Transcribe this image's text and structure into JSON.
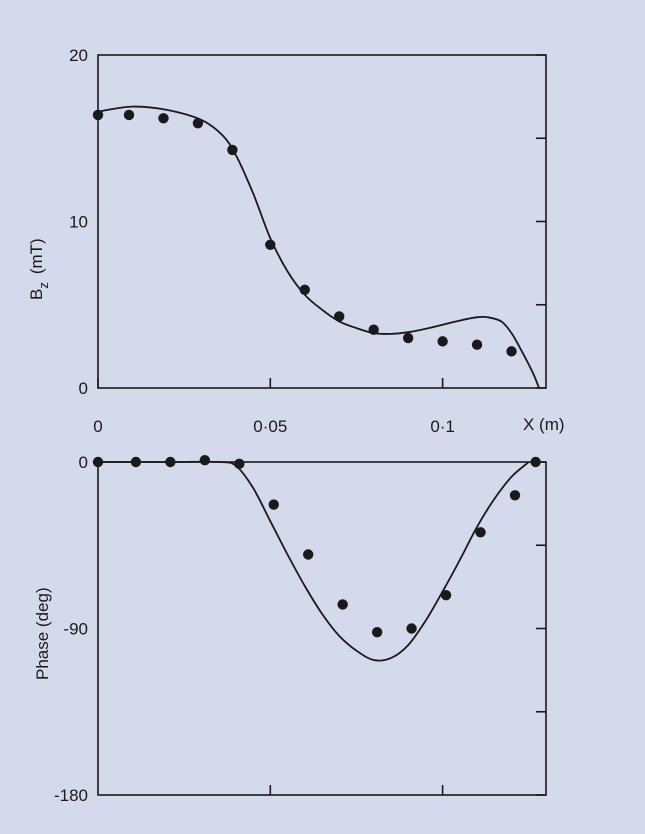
{
  "colors": {
    "background": "#d5d9ec",
    "ink": "#1a1a1a"
  },
  "chart_data": [
    {
      "type": "line",
      "title": "",
      "ylabel": "B",
      "ylabel_sub": "z",
      "ylabel_unit": "(mT)",
      "xlabel": "X (m)",
      "xlim": [
        0,
        0.13
      ],
      "ylim": [
        0,
        20
      ],
      "yticks": [
        0,
        5,
        10,
        15,
        20
      ],
      "ytick_labels": [
        "0",
        "",
        "10",
        "",
        "20"
      ],
      "xticks": [
        0,
        0.05,
        0.1
      ],
      "xtick_labels": [
        "0",
        "0·05",
        "0·1"
      ],
      "grid": false,
      "series": [
        {
          "style": "line",
          "x": [
            0,
            0.01,
            0.02,
            0.03,
            0.036,
            0.04,
            0.045,
            0.05,
            0.055,
            0.06,
            0.065,
            0.07,
            0.075,
            0.08,
            0.085,
            0.09,
            0.095,
            0.1,
            0.105,
            0.11,
            0.113,
            0.117,
            0.12,
            0.123,
            0.126,
            0.128
          ],
          "y": [
            16.6,
            16.9,
            16.7,
            16.1,
            15.2,
            14.0,
            11.7,
            9.0,
            7.0,
            5.6,
            4.7,
            4.0,
            3.6,
            3.3,
            3.25,
            3.35,
            3.55,
            3.8,
            4.05,
            4.25,
            4.25,
            4.0,
            3.3,
            2.2,
            1.0,
            0.0
          ]
        },
        {
          "style": "points",
          "x": [
            0,
            0.009,
            0.019,
            0.029,
            0.039,
            0.05,
            0.06,
            0.07,
            0.08,
            0.09,
            0.1,
            0.11,
            0.12
          ],
          "y": [
            16.4,
            16.4,
            16.2,
            15.9,
            14.3,
            8.6,
            5.9,
            4.3,
            3.5,
            3.0,
            2.8,
            2.6,
            2.2
          ]
        }
      ]
    },
    {
      "type": "line",
      "title": "",
      "ylabel": "Phase  (deg)",
      "xlim": [
        0,
        0.13
      ],
      "ylim": [
        -180,
        0
      ],
      "yticks": [
        0,
        -45,
        -90,
        -135,
        -180
      ],
      "ytick_labels": [
        "0",
        "",
        "-90",
        "",
        "-180"
      ],
      "xticks": [
        0.05,
        0.1
      ],
      "grid": false,
      "series": [
        {
          "style": "line",
          "x": [
            0,
            0.02,
            0.035,
            0.04,
            0.045,
            0.05,
            0.055,
            0.06,
            0.065,
            0.07,
            0.075,
            0.08,
            0.085,
            0.09,
            0.095,
            0.1,
            0.105,
            0.11,
            0.115,
            0.12,
            0.125
          ],
          "y": [
            0,
            0,
            0,
            -2,
            -14,
            -32,
            -50,
            -67,
            -82,
            -94,
            -102,
            -107,
            -106,
            -99,
            -86,
            -70,
            -53,
            -35,
            -20,
            -8,
            0
          ]
        },
        {
          "style": "points",
          "x": [
            0,
            0.011,
            0.021,
            0.031,
            0.041,
            0.051,
            0.061,
            0.071,
            0.081,
            0.091,
            0.101,
            0.111,
            0.121,
            0.127
          ],
          "y": [
            0,
            0,
            0,
            1,
            -1,
            -23,
            -50,
            -77,
            -92,
            -90,
            -72,
            -38,
            -18,
            0
          ]
        }
      ]
    }
  ]
}
